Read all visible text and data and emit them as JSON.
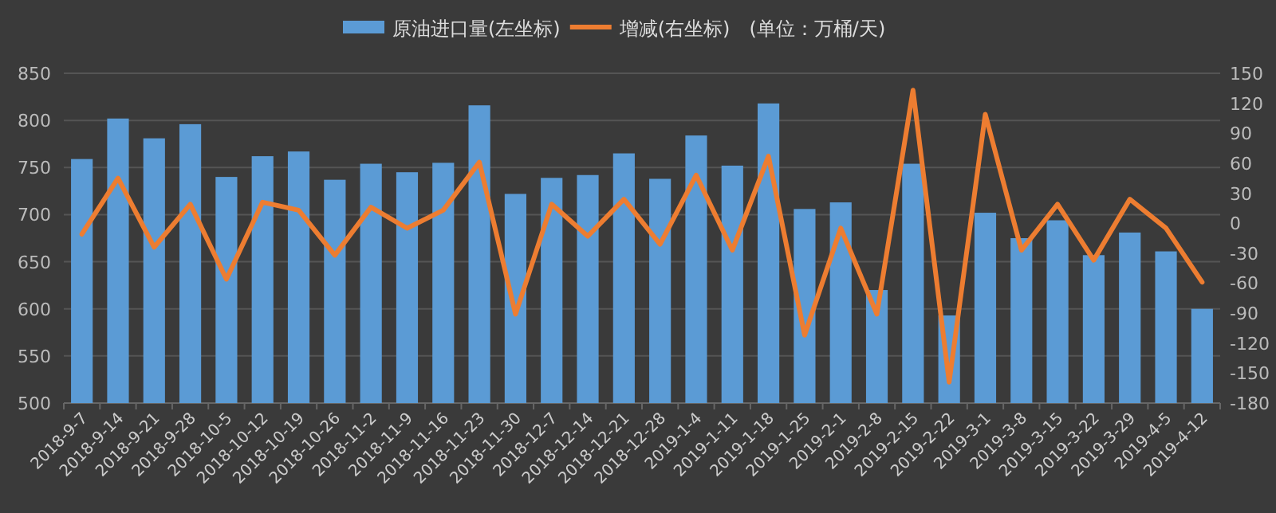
{
  "chart_data": {
    "type": "bar",
    "categories": [
      "2018-9-7",
      "2018-9-14",
      "2018-9-21",
      "2018-9-28",
      "2018-10-5",
      "2018-10-12",
      "2018-10-19",
      "2018-10-26",
      "2018-11-2",
      "2018-11-9",
      "2018-11-16",
      "2018-11-23",
      "2018-11-30",
      "2018-12-7",
      "2018-12-14",
      "2018-12-21",
      "2018-12-28",
      "2019-1-4",
      "2019-1-11",
      "2019-1-18",
      "2019-1-25",
      "2019-2-1",
      "2019-2-8",
      "2019-2-15",
      "2019-2-22",
      "2019-3-1",
      "2019-3-8",
      "2019-3-15",
      "2019-3-22",
      "2019-3-29",
      "2019-4-5",
      "2019-4-12"
    ],
    "series": [
      {
        "name": "原油进口量(左坐标)",
        "color": "#5b9bd5",
        "values": [
          759,
          802,
          781,
          796,
          740,
          762,
          767,
          737,
          754,
          745,
          755,
          816,
          722,
          739,
          742,
          765,
          738,
          784,
          752,
          818,
          706,
          713,
          620,
          754,
          593,
          702,
          675,
          694,
          657,
          681,
          661,
          600
        ]
      },
      {
        "name": "增减(右坐标)",
        "type": "line",
        "axis": "y2",
        "color": "#ed7d31",
        "values": [
          -11,
          45,
          -24,
          19,
          -56,
          21,
          13,
          -32,
          16,
          -5,
          13,
          61,
          -91,
          19,
          -13,
          24,
          -21,
          48,
          -27,
          67,
          -112,
          -5,
          -91,
          133,
          -159,
          109,
          -27,
          19,
          -37,
          24,
          -5,
          -59
        ]
      }
    ],
    "ylim": [
      500,
      850
    ],
    "yticks": [
      500,
      550,
      600,
      650,
      700,
      750,
      800,
      850
    ],
    "y2lim": [
      -180,
      150
    ],
    "y2ticks": [
      -180,
      -150,
      -120,
      -90,
      -60,
      -30,
      0,
      30,
      60,
      90,
      120,
      150
    ],
    "grid": "y",
    "legend": "top",
    "annotations": [
      "(单位：万桶/天)"
    ]
  }
}
